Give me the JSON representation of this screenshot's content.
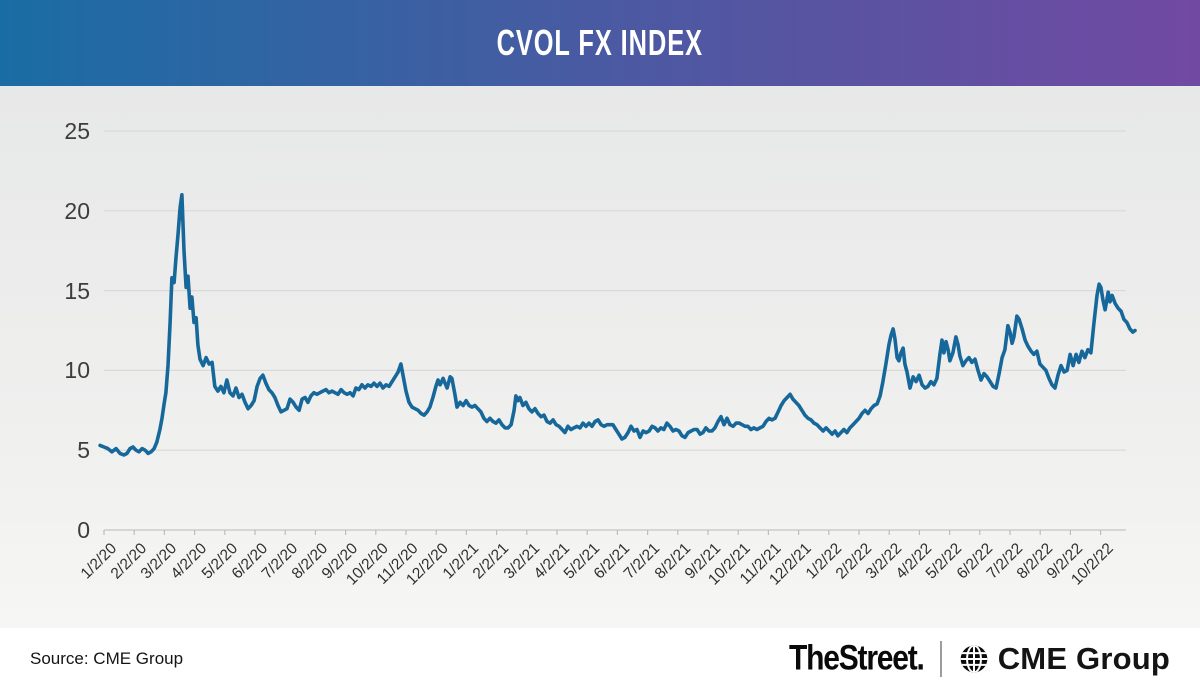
{
  "header": {
    "title": "CVOL FX INDEX",
    "gradient_left": "#1a6da4",
    "gradient_right": "#7149a3"
  },
  "footer": {
    "source": "Source: CME Group",
    "brand_left": "TheStreet.",
    "divider": "|",
    "brand_right": "CME Group",
    "globe_icon": "cme-globe"
  },
  "chart_data": {
    "type": "line",
    "title": "CVOL FX INDEX",
    "series_name": "CVOL FX Index",
    "line_color": "#17689a",
    "grid_color": "#d9d9d9",
    "axis_color": "#c5c5c5",
    "tick_color": "#bdbdbd",
    "grid": "horizontal",
    "legend": "none",
    "ylim": [
      0,
      26.5
    ],
    "y_ticks": [
      0,
      5,
      10,
      15,
      20,
      25
    ],
    "y_tick_labels": [
      "0",
      "5",
      "10",
      "15",
      "20",
      "25"
    ],
    "x_tick_labels": [
      "1/2/20",
      "2/2/20",
      "3/2/20",
      "4/2/20",
      "5/2/20",
      "6/2/20",
      "7/2/20",
      "8/2/20",
      "9/2/20",
      "10/2/20",
      "11/2/20",
      "12/2/20",
      "1/2/21",
      "2/2/21",
      "3/2/21",
      "4/2/21",
      "5/2/21",
      "6/2/21",
      "7/2/21",
      "8/2/21",
      "9/2/21",
      "10/2/21",
      "11/2/21",
      "12/2/21",
      "1/2/22",
      "2/2/22",
      "3/2/22",
      "4/2/22",
      "5/2/22",
      "6/2/22",
      "7/2/22",
      "8/2/22",
      "9/2/22",
      "10/2/22"
    ],
    "x_unit": "months since 1/2/20",
    "points": [
      [
        -0.13,
        5.3
      ],
      [
        0,
        5.2
      ],
      [
        0.13,
        5.1
      ],
      [
        0.26,
        4.9
      ],
      [
        0.4,
        5.1
      ],
      [
        0.53,
        4.8
      ],
      [
        0.66,
        4.7
      ],
      [
        0.76,
        4.8
      ],
      [
        0.86,
        5.1
      ],
      [
        0.96,
        5.2
      ],
      [
        1.06,
        5.0
      ],
      [
        1.16,
        4.9
      ],
      [
        1.26,
        5.1
      ],
      [
        1.36,
        5.0
      ],
      [
        1.46,
        4.8
      ],
      [
        1.56,
        4.9
      ],
      [
        1.66,
        5.1
      ],
      [
        1.75,
        5.5
      ],
      [
        1.85,
        6.3
      ],
      [
        1.92,
        7.0
      ],
      [
        1.99,
        7.9
      ],
      [
        2.05,
        8.6
      ],
      [
        2.12,
        10.3
      ],
      [
        2.19,
        13.0
      ],
      [
        2.25,
        15.8
      ],
      [
        2.32,
        15.5
      ],
      [
        2.38,
        17.0
      ],
      [
        2.45,
        18.5
      ],
      [
        2.52,
        20.2
      ],
      [
        2.58,
        21.0
      ],
      [
        2.65,
        17.5
      ],
      [
        2.72,
        15.2
      ],
      [
        2.78,
        15.9
      ],
      [
        2.85,
        13.9
      ],
      [
        2.91,
        14.6
      ],
      [
        2.98,
        13.0
      ],
      [
        3.05,
        13.3
      ],
      [
        3.11,
        11.6
      ],
      [
        3.18,
        10.7
      ],
      [
        3.28,
        10.3
      ],
      [
        3.38,
        10.8
      ],
      [
        3.48,
        10.4
      ],
      [
        3.58,
        10.5
      ],
      [
        3.67,
        9.0
      ],
      [
        3.77,
        8.7
      ],
      [
        3.87,
        9.0
      ],
      [
        3.97,
        8.6
      ],
      [
        4.07,
        9.4
      ],
      [
        4.17,
        8.6
      ],
      [
        4.27,
        8.4
      ],
      [
        4.37,
        8.9
      ],
      [
        4.47,
        8.3
      ],
      [
        4.57,
        8.5
      ],
      [
        4.67,
        8.0
      ],
      [
        4.77,
        7.6
      ],
      [
        4.87,
        7.8
      ],
      [
        4.97,
        8.1
      ],
      [
        5.07,
        9.0
      ],
      [
        5.17,
        9.5
      ],
      [
        5.26,
        9.7
      ],
      [
        5.36,
        9.2
      ],
      [
        5.46,
        8.8
      ],
      [
        5.56,
        8.6
      ],
      [
        5.66,
        8.3
      ],
      [
        5.76,
        7.8
      ],
      [
        5.86,
        7.4
      ],
      [
        5.96,
        7.5
      ],
      [
        6.06,
        7.6
      ],
      [
        6.16,
        8.2
      ],
      [
        6.26,
        8.0
      ],
      [
        6.36,
        7.7
      ],
      [
        6.46,
        7.5
      ],
      [
        6.56,
        8.2
      ],
      [
        6.66,
        8.3
      ],
      [
        6.75,
        8.0
      ],
      [
        6.85,
        8.4
      ],
      [
        6.95,
        8.6
      ],
      [
        7.05,
        8.5
      ],
      [
        7.15,
        8.6
      ],
      [
        7.25,
        8.7
      ],
      [
        7.35,
        8.8
      ],
      [
        7.45,
        8.6
      ],
      [
        7.55,
        8.7
      ],
      [
        7.65,
        8.6
      ],
      [
        7.75,
        8.5
      ],
      [
        7.85,
        8.8
      ],
      [
        7.95,
        8.6
      ],
      [
        8.05,
        8.5
      ],
      [
        8.15,
        8.6
      ],
      [
        8.25,
        8.4
      ],
      [
        8.34,
        8.9
      ],
      [
        8.44,
        8.8
      ],
      [
        8.54,
        9.1
      ],
      [
        8.64,
        8.9
      ],
      [
        8.74,
        9.1
      ],
      [
        8.84,
        9.0
      ],
      [
        8.94,
        9.2
      ],
      [
        9.04,
        9.0
      ],
      [
        9.14,
        9.2
      ],
      [
        9.24,
        8.9
      ],
      [
        9.34,
        9.1
      ],
      [
        9.44,
        9.0
      ],
      [
        9.54,
        9.3
      ],
      [
        9.64,
        9.6
      ],
      [
        9.74,
        9.9
      ],
      [
        9.83,
        10.4
      ],
      [
        9.93,
        9.4
      ],
      [
        10.0,
        8.7
      ],
      [
        10.1,
        8.0
      ],
      [
        10.2,
        7.7
      ],
      [
        10.3,
        7.6
      ],
      [
        10.4,
        7.5
      ],
      [
        10.5,
        7.3
      ],
      [
        10.6,
        7.2
      ],
      [
        10.7,
        7.4
      ],
      [
        10.79,
        7.7
      ],
      [
        10.89,
        8.3
      ],
      [
        10.99,
        9.0
      ],
      [
        11.06,
        9.4
      ],
      [
        11.13,
        9.1
      ],
      [
        11.23,
        9.5
      ],
      [
        11.29,
        9.2
      ],
      [
        11.36,
        8.9
      ],
      [
        11.46,
        9.6
      ],
      [
        11.52,
        9.5
      ],
      [
        11.62,
        8.5
      ],
      [
        11.69,
        7.7
      ],
      [
        11.79,
        8.0
      ],
      [
        11.89,
        7.8
      ],
      [
        11.99,
        8.1
      ],
      [
        12.09,
        7.8
      ],
      [
        12.19,
        7.7
      ],
      [
        12.28,
        7.8
      ],
      [
        12.38,
        7.6
      ],
      [
        12.48,
        7.4
      ],
      [
        12.58,
        7.0
      ],
      [
        12.68,
        6.8
      ],
      [
        12.78,
        7.0
      ],
      [
        12.88,
        6.8
      ],
      [
        12.98,
        6.7
      ],
      [
        13.08,
        6.9
      ],
      [
        13.18,
        6.6
      ],
      [
        13.28,
        6.4
      ],
      [
        13.38,
        6.4
      ],
      [
        13.48,
        6.6
      ],
      [
        13.58,
        7.5
      ],
      [
        13.64,
        8.4
      ],
      [
        13.71,
        8.1
      ],
      [
        13.77,
        8.3
      ],
      [
        13.87,
        7.8
      ],
      [
        13.97,
        8.0
      ],
      [
        14.07,
        7.6
      ],
      [
        14.17,
        7.4
      ],
      [
        14.27,
        7.6
      ],
      [
        14.37,
        7.3
      ],
      [
        14.47,
        7.1
      ],
      [
        14.57,
        7.2
      ],
      [
        14.67,
        6.8
      ],
      [
        14.77,
        6.7
      ],
      [
        14.87,
        6.9
      ],
      [
        14.97,
        6.6
      ],
      [
        15.07,
        6.5
      ],
      [
        15.17,
        6.3
      ],
      [
        15.26,
        6.1
      ],
      [
        15.36,
        6.5
      ],
      [
        15.46,
        6.3
      ],
      [
        15.56,
        6.4
      ],
      [
        15.66,
        6.5
      ],
      [
        15.76,
        6.4
      ],
      [
        15.86,
        6.7
      ],
      [
        15.96,
        6.5
      ],
      [
        16.06,
        6.7
      ],
      [
        16.16,
        6.5
      ],
      [
        16.26,
        6.8
      ],
      [
        16.36,
        6.9
      ],
      [
        16.46,
        6.6
      ],
      [
        16.56,
        6.5
      ],
      [
        16.66,
        6.6
      ],
      [
        16.75,
        6.6
      ],
      [
        16.85,
        6.6
      ],
      [
        16.95,
        6.3
      ],
      [
        17.05,
        6.0
      ],
      [
        17.15,
        5.7
      ],
      [
        17.25,
        5.8
      ],
      [
        17.35,
        6.1
      ],
      [
        17.45,
        6.5
      ],
      [
        17.55,
        6.2
      ],
      [
        17.65,
        6.3
      ],
      [
        17.75,
        5.8
      ],
      [
        17.85,
        6.2
      ],
      [
        17.95,
        6.1
      ],
      [
        18.05,
        6.2
      ],
      [
        18.15,
        6.5
      ],
      [
        18.25,
        6.4
      ],
      [
        18.34,
        6.2
      ],
      [
        18.44,
        6.4
      ],
      [
        18.54,
        6.3
      ],
      [
        18.64,
        6.7
      ],
      [
        18.74,
        6.5
      ],
      [
        18.84,
        6.2
      ],
      [
        18.94,
        6.3
      ],
      [
        19.04,
        6.2
      ],
      [
        19.14,
        5.9
      ],
      [
        19.24,
        5.8
      ],
      [
        19.34,
        6.1
      ],
      [
        19.44,
        6.2
      ],
      [
        19.54,
        6.3
      ],
      [
        19.64,
        6.3
      ],
      [
        19.74,
        6.0
      ],
      [
        19.83,
        6.1
      ],
      [
        19.93,
        6.4
      ],
      [
        20.03,
        6.2
      ],
      [
        20.13,
        6.2
      ],
      [
        20.23,
        6.4
      ],
      [
        20.33,
        6.8
      ],
      [
        20.43,
        7.1
      ],
      [
        20.53,
        6.6
      ],
      [
        20.63,
        7.0
      ],
      [
        20.73,
        6.6
      ],
      [
        20.83,
        6.5
      ],
      [
        20.93,
        6.7
      ],
      [
        21.03,
        6.7
      ],
      [
        21.13,
        6.6
      ],
      [
        21.23,
        6.5
      ],
      [
        21.32,
        6.5
      ],
      [
        21.42,
        6.3
      ],
      [
        21.52,
        6.4
      ],
      [
        21.62,
        6.3
      ],
      [
        21.72,
        6.4
      ],
      [
        21.82,
        6.5
      ],
      [
        21.92,
        6.8
      ],
      [
        22.02,
        7.0
      ],
      [
        22.12,
        6.9
      ],
      [
        22.22,
        7.0
      ],
      [
        22.32,
        7.4
      ],
      [
        22.42,
        7.8
      ],
      [
        22.52,
        8.1
      ],
      [
        22.62,
        8.3
      ],
      [
        22.72,
        8.5
      ],
      [
        22.81,
        8.2
      ],
      [
        22.91,
        8.0
      ],
      [
        23.01,
        7.8
      ],
      [
        23.11,
        7.5
      ],
      [
        23.21,
        7.2
      ],
      [
        23.31,
        7.0
      ],
      [
        23.41,
        6.9
      ],
      [
        23.51,
        6.7
      ],
      [
        23.61,
        6.6
      ],
      [
        23.71,
        6.4
      ],
      [
        23.81,
        6.2
      ],
      [
        23.91,
        6.4
      ],
      [
        24.01,
        6.2
      ],
      [
        24.11,
        6.0
      ],
      [
        24.21,
        6.2
      ],
      [
        24.3,
        5.9
      ],
      [
        24.4,
        6.1
      ],
      [
        24.5,
        6.3
      ],
      [
        24.6,
        6.1
      ],
      [
        24.7,
        6.4
      ],
      [
        24.8,
        6.6
      ],
      [
        24.9,
        6.8
      ],
      [
        25.0,
        7.0
      ],
      [
        25.1,
        7.3
      ],
      [
        25.2,
        7.5
      ],
      [
        25.3,
        7.3
      ],
      [
        25.4,
        7.6
      ],
      [
        25.5,
        7.8
      ],
      [
        25.6,
        7.9
      ],
      [
        25.7,
        8.4
      ],
      [
        25.79,
        9.3
      ],
      [
        25.89,
        10.4
      ],
      [
        25.99,
        11.6
      ],
      [
        26.06,
        12.2
      ],
      [
        26.13,
        12.6
      ],
      [
        26.19,
        12.0
      ],
      [
        26.26,
        10.8
      ],
      [
        26.32,
        10.6
      ],
      [
        26.39,
        11.1
      ],
      [
        26.46,
        11.4
      ],
      [
        26.52,
        10.4
      ],
      [
        26.59,
        9.9
      ],
      [
        26.69,
        8.9
      ],
      [
        26.79,
        9.6
      ],
      [
        26.89,
        9.3
      ],
      [
        26.99,
        9.7
      ],
      [
        27.09,
        9.1
      ],
      [
        27.19,
        8.9
      ],
      [
        27.28,
        9.0
      ],
      [
        27.38,
        9.3
      ],
      [
        27.48,
        9.1
      ],
      [
        27.58,
        9.5
      ],
      [
        27.68,
        11.0
      ],
      [
        27.75,
        11.9
      ],
      [
        27.81,
        11.1
      ],
      [
        27.88,
        11.8
      ],
      [
        27.95,
        11.3
      ],
      [
        28.01,
        10.6
      ],
      [
        28.11,
        11.1
      ],
      [
        28.21,
        12.1
      ],
      [
        28.28,
        11.6
      ],
      [
        28.34,
        10.9
      ],
      [
        28.44,
        10.3
      ],
      [
        28.54,
        10.6
      ],
      [
        28.64,
        10.8
      ],
      [
        28.74,
        10.5
      ],
      [
        28.84,
        10.7
      ],
      [
        28.94,
        10.0
      ],
      [
        29.04,
        9.4
      ],
      [
        29.14,
        9.8
      ],
      [
        29.24,
        9.6
      ],
      [
        29.34,
        9.3
      ],
      [
        29.44,
        9.0
      ],
      [
        29.54,
        8.9
      ],
      [
        29.64,
        9.8
      ],
      [
        29.74,
        10.8
      ],
      [
        29.83,
        11.3
      ],
      [
        29.93,
        12.8
      ],
      [
        30.0,
        12.4
      ],
      [
        30.07,
        11.7
      ],
      [
        30.13,
        12.1
      ],
      [
        30.23,
        13.4
      ],
      [
        30.3,
        13.2
      ],
      [
        30.4,
        12.6
      ],
      [
        30.5,
        11.9
      ],
      [
        30.6,
        11.5
      ],
      [
        30.7,
        11.2
      ],
      [
        30.79,
        11.0
      ],
      [
        30.89,
        11.2
      ],
      [
        30.99,
        10.4
      ],
      [
        31.09,
        10.2
      ],
      [
        31.19,
        10.0
      ],
      [
        31.29,
        9.5
      ],
      [
        31.39,
        9.1
      ],
      [
        31.49,
        8.9
      ],
      [
        31.59,
        9.7
      ],
      [
        31.69,
        10.3
      ],
      [
        31.79,
        9.9
      ],
      [
        31.89,
        10.0
      ],
      [
        31.99,
        11.0
      ],
      [
        32.09,
        10.3
      ],
      [
        32.19,
        11.0
      ],
      [
        32.28,
        10.5
      ],
      [
        32.38,
        11.2
      ],
      [
        32.48,
        10.8
      ],
      [
        32.58,
        11.3
      ],
      [
        32.68,
        11.1
      ],
      [
        32.78,
        13.0
      ],
      [
        32.88,
        14.7
      ],
      [
        32.95,
        15.4
      ],
      [
        33.01,
        15.2
      ],
      [
        33.08,
        14.4
      ],
      [
        33.15,
        13.8
      ],
      [
        33.25,
        14.9
      ],
      [
        33.31,
        14.3
      ],
      [
        33.38,
        14.7
      ],
      [
        33.48,
        14.2
      ],
      [
        33.58,
        13.9
      ],
      [
        33.68,
        13.7
      ],
      [
        33.77,
        13.2
      ],
      [
        33.87,
        13.0
      ],
      [
        33.97,
        12.6
      ],
      [
        34.07,
        12.4
      ],
      [
        34.14,
        12.5
      ]
    ]
  }
}
